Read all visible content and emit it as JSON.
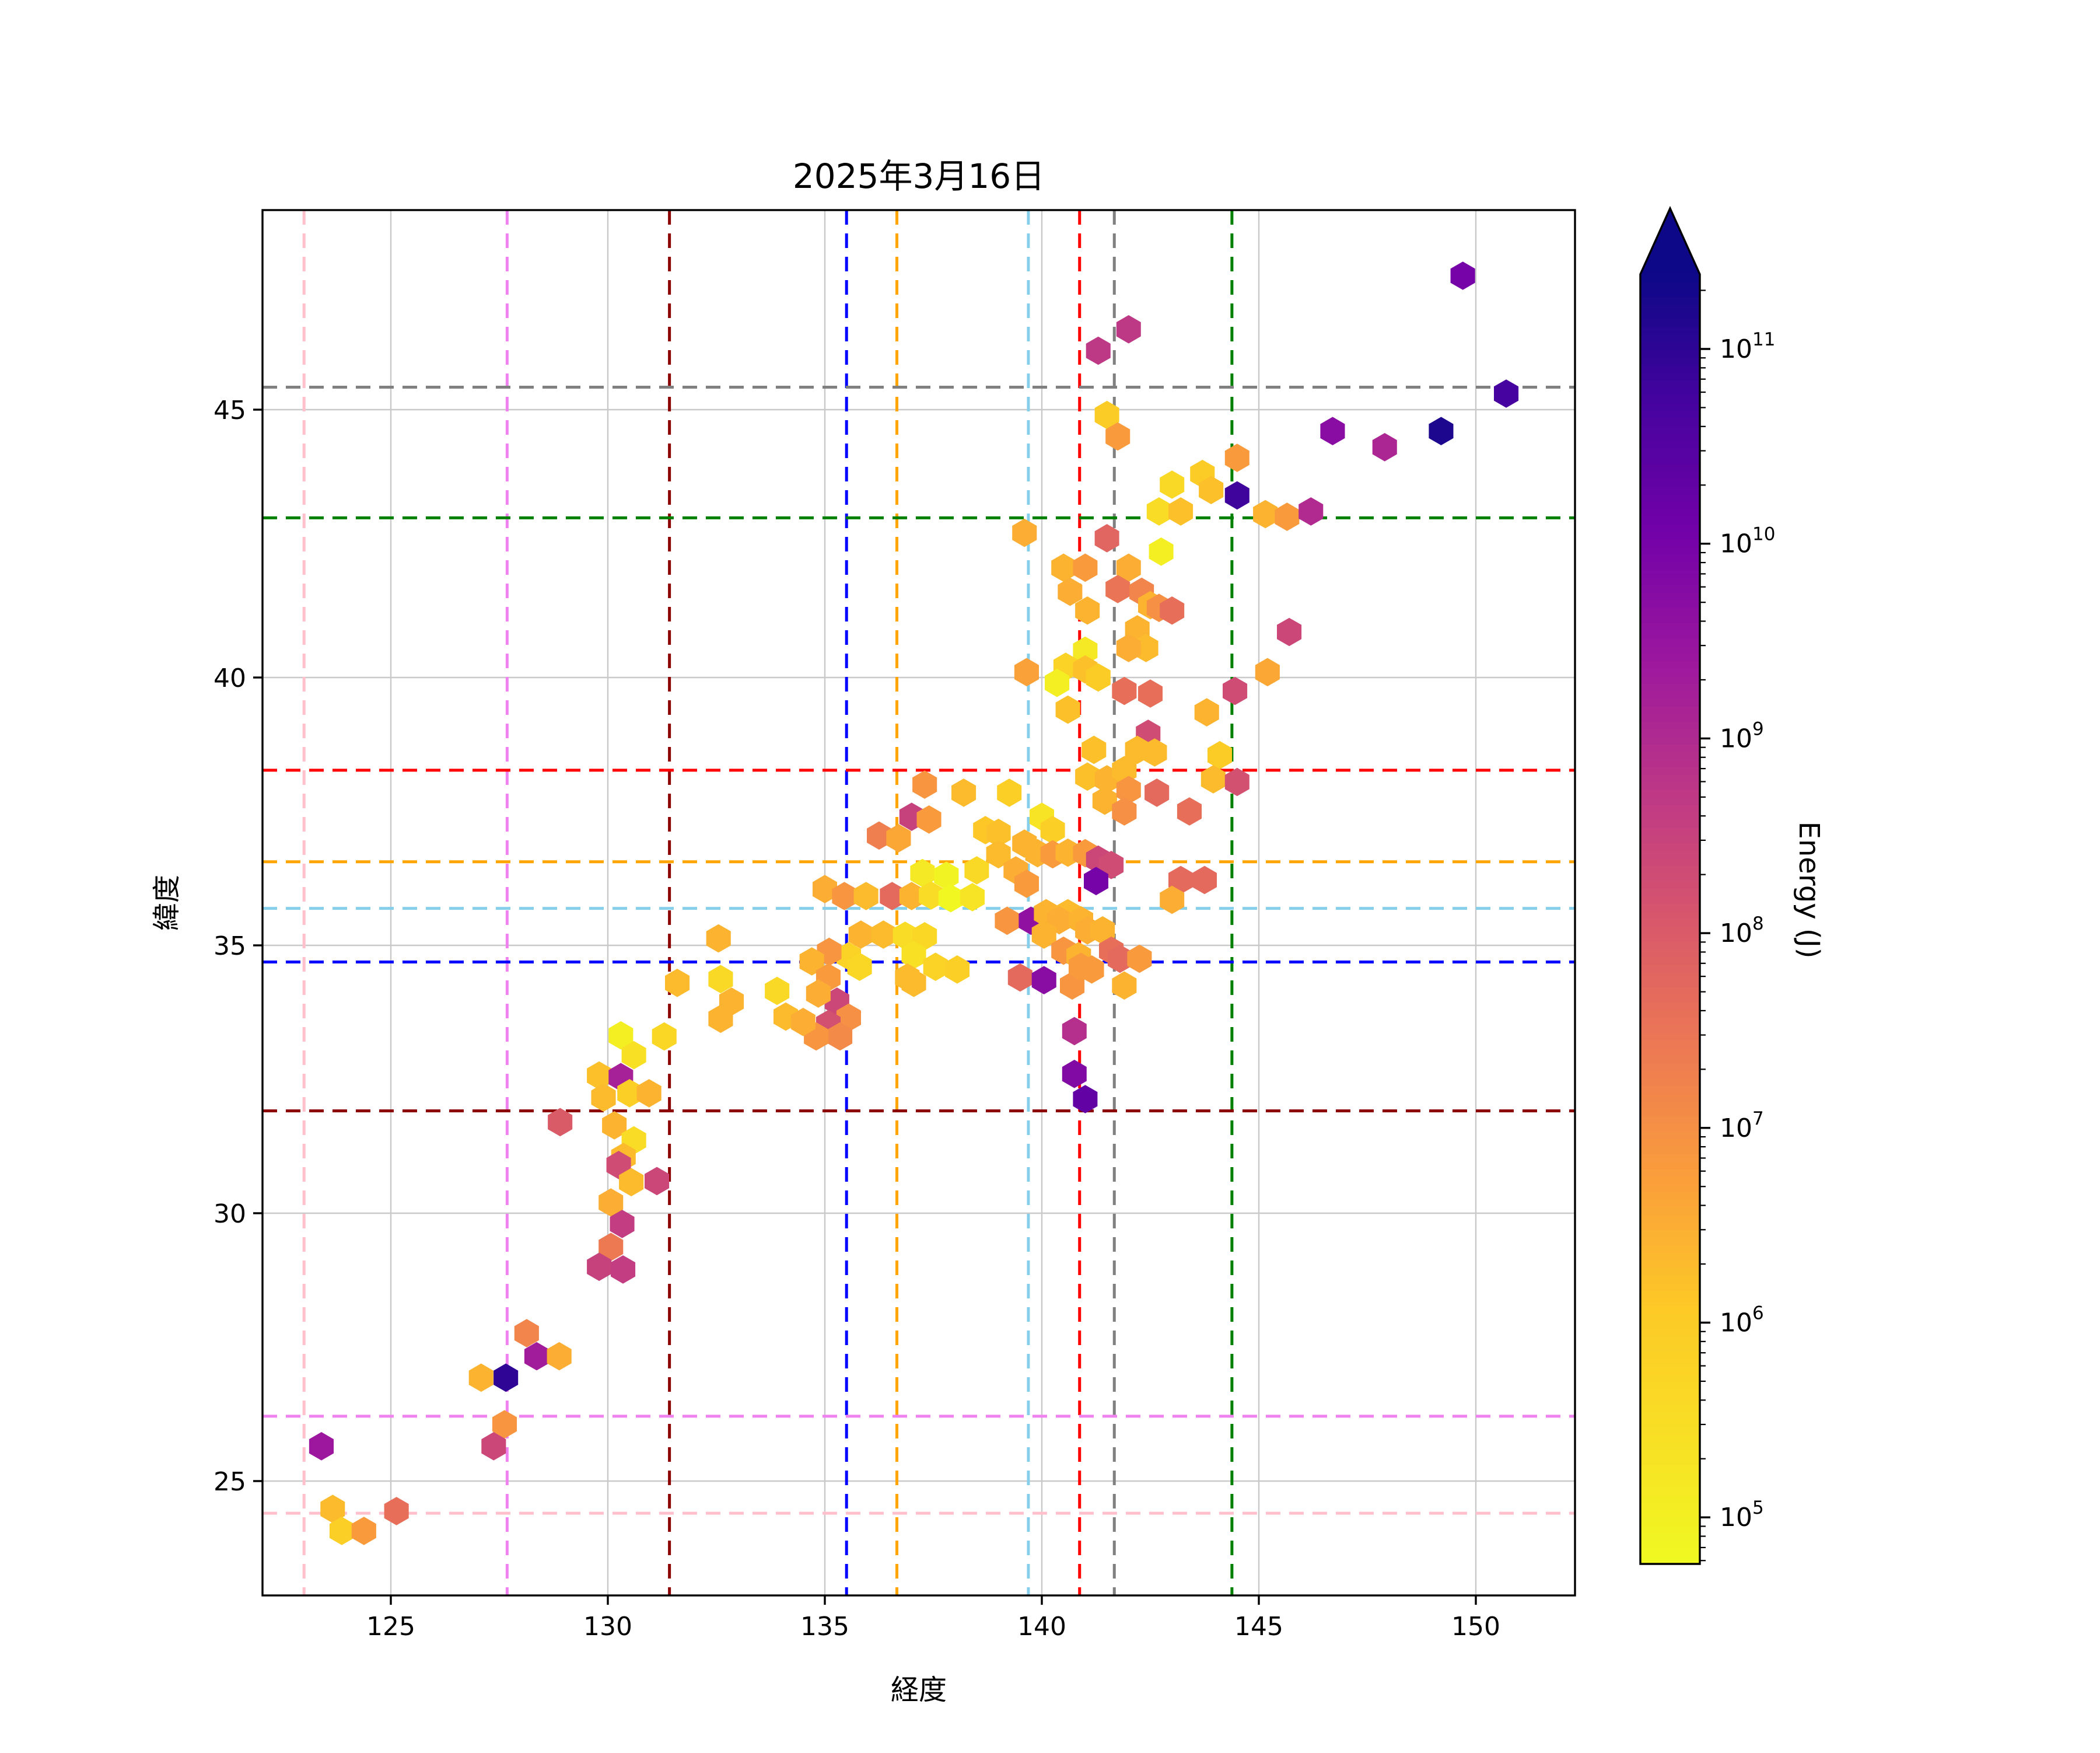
{
  "figure": {
    "background": "#ffffff"
  },
  "chart_data": {
    "type": "hexbin",
    "title": "2025年3月16日",
    "xlabel": "経度",
    "ylabel": "緯度",
    "xlim": [
      121.9,
      152.3
    ],
    "ylim": [
      22.85,
      48.75
    ],
    "xticks": [
      125,
      130,
      135,
      140,
      145,
      150
    ],
    "yticks": [
      25,
      30,
      35,
      40,
      45
    ],
    "grid": true,
    "grid_color": "#c9c9c9",
    "colormap": "plasma_r",
    "color_scale": {
      "label": "Energy (J)",
      "type": "log",
      "min_log10": 4.757,
      "max_log10": 11.383,
      "tick_exponents": [
        5,
        6,
        7,
        8,
        9,
        10,
        11
      ],
      "tick_prefix": "10",
      "extend": "max"
    },
    "reference_vlines": [
      {
        "lon": 123.0,
        "color": "#ffc0cb"
      },
      {
        "lon": 127.68,
        "color": "#ee82ee"
      },
      {
        "lon": 131.42,
        "color": "#8b0000"
      },
      {
        "lon": 135.5,
        "color": "#0000ff"
      },
      {
        "lon": 136.66,
        "color": "#ffa500"
      },
      {
        "lon": 139.69,
        "color": "#87ceeb"
      },
      {
        "lon": 140.87,
        "color": "#ff0000"
      },
      {
        "lon": 141.67,
        "color": "#808080"
      },
      {
        "lon": 144.38,
        "color": "#008000"
      }
    ],
    "reference_hlines": [
      {
        "lat": 24.4,
        "color": "#ffc0cb"
      },
      {
        "lat": 26.21,
        "color": "#ee82ee"
      },
      {
        "lat": 31.91,
        "color": "#8b0000"
      },
      {
        "lat": 34.69,
        "color": "#0000ff"
      },
      {
        "lat": 35.69,
        "color": "#87ceeb"
      },
      {
        "lat": 36.56,
        "color": "#ffa500"
      },
      {
        "lat": 38.27,
        "color": "#ff0000"
      },
      {
        "lat": 42.98,
        "color": "#008000"
      },
      {
        "lat": 45.42,
        "color": "#808080"
      }
    ],
    "hexbins": [
      [
        149.7,
        47.5,
        10.0
      ],
      [
        142.0,
        46.5,
        8.7
      ],
      [
        141.3,
        46.1,
        8.7
      ],
      [
        150.7,
        45.3,
        10.7
      ],
      [
        141.5,
        44.9,
        6.0
      ],
      [
        141.75,
        44.5,
        6.8
      ],
      [
        146.7,
        44.6,
        9.7
      ],
      [
        147.9,
        44.3,
        9.1
      ],
      [
        149.2,
        44.6,
        11.2
      ],
      [
        144.5,
        44.1,
        6.8
      ],
      [
        143.7,
        43.8,
        6.0
      ],
      [
        143.0,
        43.6,
        5.6
      ],
      [
        143.9,
        43.5,
        6.2
      ],
      [
        144.5,
        43.4,
        10.8
      ],
      [
        142.7,
        43.1,
        5.5
      ],
      [
        143.2,
        43.1,
        6.2
      ],
      [
        145.15,
        43.05,
        6.4
      ],
      [
        145.65,
        43.0,
        6.8
      ],
      [
        146.2,
        43.1,
        9.0
      ],
      [
        141.5,
        42.6,
        7.8
      ],
      [
        139.6,
        42.7,
        6.5
      ],
      [
        140.5,
        42.05,
        6.4
      ],
      [
        141.0,
        42.05,
        6.8
      ],
      [
        142.0,
        42.05,
        6.5
      ],
      [
        142.75,
        42.35,
        5.0
      ],
      [
        140.65,
        41.6,
        6.5
      ],
      [
        141.75,
        41.65,
        7.5
      ],
      [
        142.3,
        41.6,
        7.2
      ],
      [
        141.05,
        41.25,
        6.4
      ],
      [
        142.5,
        41.35,
        6.4
      ],
      [
        142.7,
        41.3,
        7.0
      ],
      [
        143.0,
        41.25,
        7.6
      ],
      [
        142.2,
        40.9,
        6.4
      ],
      [
        145.7,
        40.85,
        8.4
      ],
      [
        142.4,
        40.55,
        6.3
      ],
      [
        142.0,
        40.55,
        6.5
      ],
      [
        141.0,
        40.5,
        5.2
      ],
      [
        140.55,
        40.2,
        5.8
      ],
      [
        141.0,
        40.15,
        6.2
      ],
      [
        141.3,
        40.0,
        6.0
      ],
      [
        139.65,
        40.1,
        6.7
      ],
      [
        145.2,
        40.1,
        6.6
      ],
      [
        140.35,
        39.9,
        5.0
      ],
      [
        141.9,
        39.75,
        7.6
      ],
      [
        142.5,
        39.7,
        7.6
      ],
      [
        144.45,
        39.75,
        8.3
      ],
      [
        140.6,
        39.4,
        6.2
      ],
      [
        143.8,
        39.35,
        6.4
      ],
      [
        142.45,
        38.95,
        8.3
      ],
      [
        141.2,
        38.65,
        6.2
      ],
      [
        142.2,
        38.65,
        6.3
      ],
      [
        142.6,
        38.6,
        6.3
      ],
      [
        144.1,
        38.55,
        6.0
      ],
      [
        141.05,
        38.15,
        6.2
      ],
      [
        141.5,
        38.1,
        6.4
      ],
      [
        141.9,
        38.27,
        6.3
      ],
      [
        143.95,
        38.1,
        6.3
      ],
      [
        144.5,
        38.05,
        8.2
      ],
      [
        142.65,
        37.85,
        7.7
      ],
      [
        143.4,
        37.5,
        7.6
      ],
      [
        141.45,
        37.7,
        6.4
      ],
      [
        142.0,
        37.9,
        6.9
      ],
      [
        141.9,
        37.5,
        7.0
      ],
      [
        140.0,
        37.4,
        5.3
      ],
      [
        137.3,
        38.0,
        6.9
      ],
      [
        138.2,
        37.85,
        6.3
      ],
      [
        139.25,
        37.85,
        5.9
      ],
      [
        137.0,
        37.4,
        8.5
      ],
      [
        137.4,
        37.35,
        6.8
      ],
      [
        136.25,
        37.05,
        7.3
      ],
      [
        136.7,
        37.0,
        6.6
      ],
      [
        138.7,
        37.15,
        6.1
      ],
      [
        139.0,
        37.1,
        6.2
      ],
      [
        140.25,
        37.15,
        5.9
      ],
      [
        139.6,
        36.9,
        6.4
      ],
      [
        139.0,
        36.7,
        6.3
      ],
      [
        139.9,
        36.72,
        6.4
      ],
      [
        140.25,
        36.7,
        6.8
      ],
      [
        140.6,
        36.73,
        6.4
      ],
      [
        141.0,
        36.72,
        6.8
      ],
      [
        139.4,
        36.4,
        6.5
      ],
      [
        139.65,
        36.15,
        6.8
      ],
      [
        141.3,
        36.6,
        8.4
      ],
      [
        141.6,
        36.5,
        8.3
      ],
      [
        141.25,
        36.2,
        10.0
      ],
      [
        143.2,
        36.22,
        7.7
      ],
      [
        143.75,
        36.22,
        7.7
      ],
      [
        143.0,
        35.85,
        6.5
      ],
      [
        137.25,
        36.35,
        5.2
      ],
      [
        137.8,
        36.3,
        4.9
      ],
      [
        138.5,
        36.4,
        5.6
      ],
      [
        135.0,
        36.05,
        6.5
      ],
      [
        135.45,
        35.92,
        6.9
      ],
      [
        135.95,
        35.92,
        6.3
      ],
      [
        136.55,
        35.92,
        7.7
      ],
      [
        137.0,
        35.92,
        6.4
      ],
      [
        137.45,
        35.93,
        5.5
      ],
      [
        137.9,
        35.88,
        4.8
      ],
      [
        138.4,
        35.9,
        5.3
      ],
      [
        135.83,
        35.2,
        6.4
      ],
      [
        136.35,
        35.2,
        6.3
      ],
      [
        136.85,
        35.18,
        5.5
      ],
      [
        137.3,
        35.17,
        5.7
      ],
      [
        139.2,
        35.46,
        6.9
      ],
      [
        139.75,
        35.46,
        9.6
      ],
      [
        140.1,
        35.6,
        6.4
      ],
      [
        140.6,
        35.6,
        6.3
      ],
      [
        140.4,
        35.47,
        6.5
      ],
      [
        140.9,
        35.47,
        6.4
      ],
      [
        141.05,
        35.28,
        6.5
      ],
      [
        141.4,
        35.28,
        6.4
      ],
      [
        140.05,
        35.2,
        6.4
      ],
      [
        140.5,
        34.9,
        6.9
      ],
      [
        140.85,
        34.8,
        6.4
      ],
      [
        141.6,
        34.9,
        7.6
      ],
      [
        141.8,
        34.75,
        7.7
      ],
      [
        142.25,
        34.75,
        6.8
      ],
      [
        135.55,
        34.8,
        5.8
      ],
      [
        137.05,
        34.82,
        5.4
      ],
      [
        135.8,
        34.6,
        5.7
      ],
      [
        137.05,
        34.3,
        6.3
      ],
      [
        137.55,
        34.6,
        5.8
      ],
      [
        138.05,
        34.55,
        5.9
      ],
      [
        136.9,
        34.4,
        6.3
      ],
      [
        139.5,
        34.4,
        7.7
      ],
      [
        140.05,
        34.35,
        9.7
      ],
      [
        140.7,
        34.25,
        6.9
      ],
      [
        140.9,
        34.6,
        6.8
      ],
      [
        141.15,
        34.55,
        6.8
      ],
      [
        141.9,
        34.25,
        6.4
      ],
      [
        140.75,
        33.4,
        8.9
      ],
      [
        140.75,
        32.6,
        9.8
      ],
      [
        141.0,
        32.13,
        10.3
      ],
      [
        135.1,
        34.88,
        6.9
      ],
      [
        134.7,
        34.7,
        6.4
      ],
      [
        135.08,
        34.4,
        6.8
      ],
      [
        135.28,
        33.95,
        8.4
      ],
      [
        135.55,
        33.65,
        7.0
      ],
      [
        135.08,
        33.53,
        8.2
      ],
      [
        135.35,
        33.3,
        7.1
      ],
      [
        134.85,
        34.1,
        6.5
      ],
      [
        134.8,
        33.3,
        6.9
      ],
      [
        132.55,
        35.13,
        6.4
      ],
      [
        131.6,
        34.3,
        6.3
      ],
      [
        132.6,
        34.37,
        5.6
      ],
      [
        132.85,
        33.95,
        6.4
      ],
      [
        132.6,
        33.63,
        6.4
      ],
      [
        133.9,
        34.15,
        5.6
      ],
      [
        134.1,
        33.67,
        6.3
      ],
      [
        134.5,
        33.57,
        6.5
      ],
      [
        130.3,
        33.32,
        5.0
      ],
      [
        130.6,
        32.95,
        5.4
      ],
      [
        131.3,
        33.3,
        5.7
      ],
      [
        129.8,
        32.57,
        6.2
      ],
      [
        130.3,
        32.54,
        9.2
      ],
      [
        129.9,
        32.16,
        6.3
      ],
      [
        130.5,
        32.24,
        5.9
      ],
      [
        130.95,
        32.24,
        6.4
      ],
      [
        128.9,
        31.7,
        8.0
      ],
      [
        130.15,
        31.64,
        6.4
      ],
      [
        130.6,
        31.36,
        5.5
      ],
      [
        130.36,
        31.05,
        6.3
      ],
      [
        130.25,
        30.9,
        8.3
      ],
      [
        130.54,
        30.58,
        6.3
      ],
      [
        131.13,
        30.6,
        8.4
      ],
      [
        130.07,
        30.2,
        6.5
      ],
      [
        130.33,
        29.8,
        8.6
      ],
      [
        130.07,
        29.37,
        7.4
      ],
      [
        129.8,
        29.0,
        8.5
      ],
      [
        130.35,
        28.95,
        8.6
      ],
      [
        128.13,
        27.76,
        7.2
      ],
      [
        128.36,
        27.33,
        9.3
      ],
      [
        128.88,
        27.33,
        6.5
      ],
      [
        127.08,
        26.93,
        6.4
      ],
      [
        127.65,
        26.93,
        11.0
      ],
      [
        127.62,
        26.06,
        6.9
      ],
      [
        127.37,
        25.65,
        8.4
      ],
      [
        123.4,
        25.65,
        9.4
      ],
      [
        123.66,
        24.48,
        6.3
      ],
      [
        123.87,
        24.07,
        5.9
      ],
      [
        124.38,
        24.07,
        6.8
      ],
      [
        125.13,
        24.44,
        7.6
      ]
    ]
  }
}
